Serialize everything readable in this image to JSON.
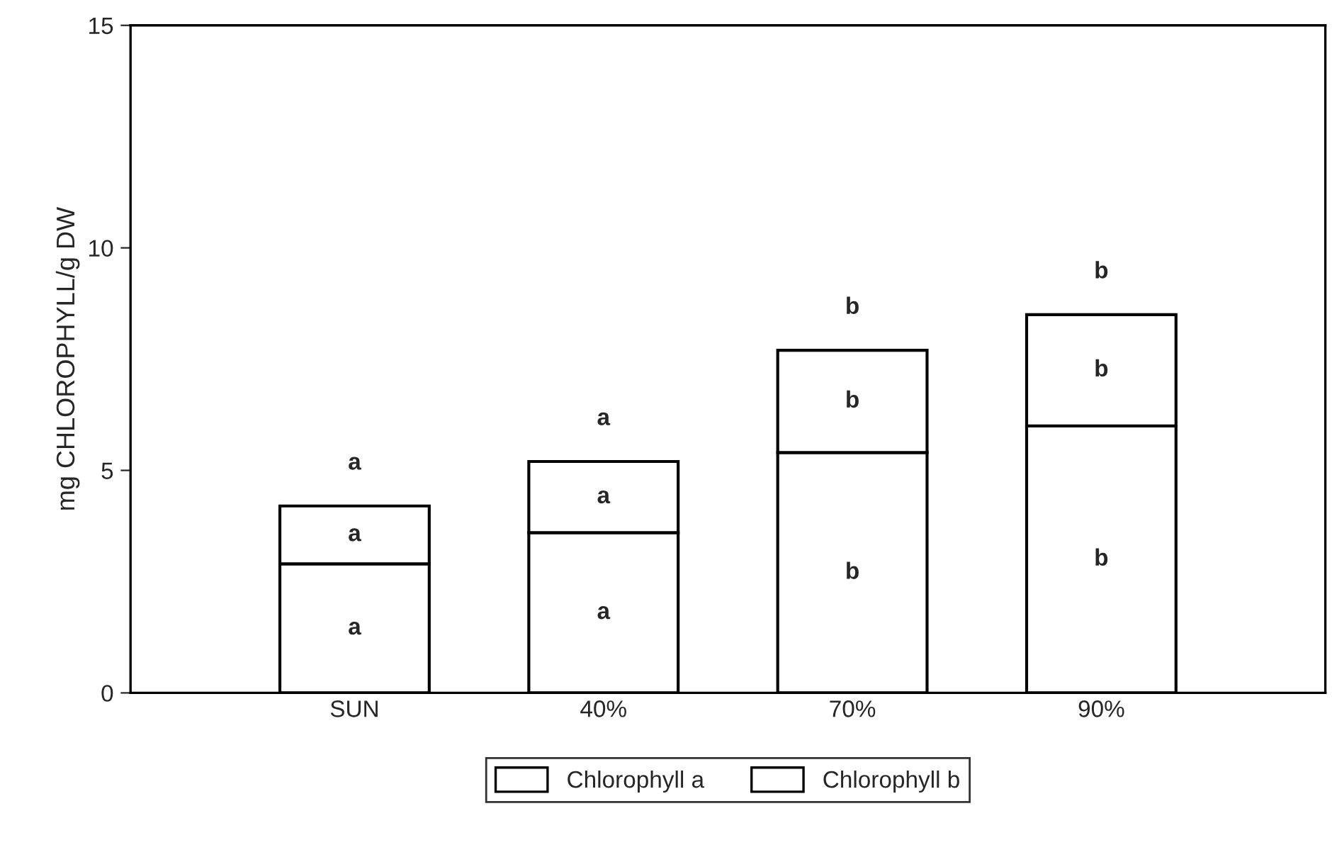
{
  "chart_data": {
    "type": "bar",
    "stacked": true,
    "ylabel": "mg CHLOROPHYLL/g DW",
    "categories": [
      "SUN",
      "40%",
      "70%",
      "90%"
    ],
    "series": [
      {
        "name": "Chlorophyll a",
        "color": "#ffffff",
        "values": [
          2.9,
          3.6,
          5.4,
          6.0
        ]
      },
      {
        "name": "Chlorophyll b",
        "color": "#ffffff",
        "values": [
          1.3,
          1.6,
          2.3,
          2.5
        ]
      }
    ],
    "ylim": [
      0,
      15
    ],
    "yticks": [
      0,
      5,
      10,
      15
    ],
    "grid": false,
    "legend": "bottom",
    "annotations": [
      "a",
      "a",
      "a",
      "a",
      "a",
      "a",
      "b",
      "b",
      "b",
      "b",
      "b",
      "b"
    ]
  }
}
